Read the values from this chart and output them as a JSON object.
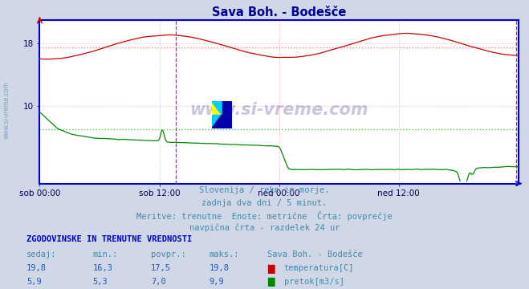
{
  "title": "Sava Boh. - Bodešče",
  "title_color": "#000099",
  "bg_color": "#d0d8e8",
  "plot_bg_color": "#ffffff",
  "border_color": "#0000cc",
  "x_tick_labels": [
    "sob 00:00",
    "sob 12:00",
    "ned 00:00",
    "ned 12:00"
  ],
  "ylim": [
    0,
    21
  ],
  "y_ticks": [
    10,
    18
  ],
  "temp_avg": 17.5,
  "flow_avg": 7.0,
  "temp_color": "#cc0000",
  "flow_color": "#008800",
  "avg_color_temp": "#ff8080",
  "avg_color_flow": "#00cc00",
  "vline_color_pink": "#ffaaaa",
  "vline_color_magenta": "#dd00dd",
  "subtitle_lines": [
    "Slovenija / reke in morje.",
    "zadnja dva dni / 5 minut.",
    "Meritve: trenutne  Enote: metrične  Črta: povprečje",
    "navpična črta - razdelek 24 ur"
  ],
  "subtitle_color": "#4488aa",
  "table_header": "ZGODOVINSKE IN TRENUTNE VREDNOSTI",
  "table_header_color": "#0000cc",
  "col_labels": [
    "sedaj:",
    "min.:",
    "povpr.:",
    "maks.:",
    "Sava Boh. - Bodešče"
  ],
  "col_color": "#4488aa",
  "row1": [
    "19,8",
    "16,3",
    "17,5",
    "19,8"
  ],
  "row2": [
    "5,9",
    "5,3",
    "7,0",
    "9,9"
  ],
  "row_color": "#2255bb",
  "legend_labels": [
    "temperatura[C]",
    "pretok[m3/s]"
  ],
  "legend_colors": [
    "#cc0000",
    "#008800"
  ],
  "watermark": "www.si-vreme.com",
  "watermark_color": "#000066",
  "side_text": "www.si-vreme.com",
  "side_text_color": "#7799bb"
}
